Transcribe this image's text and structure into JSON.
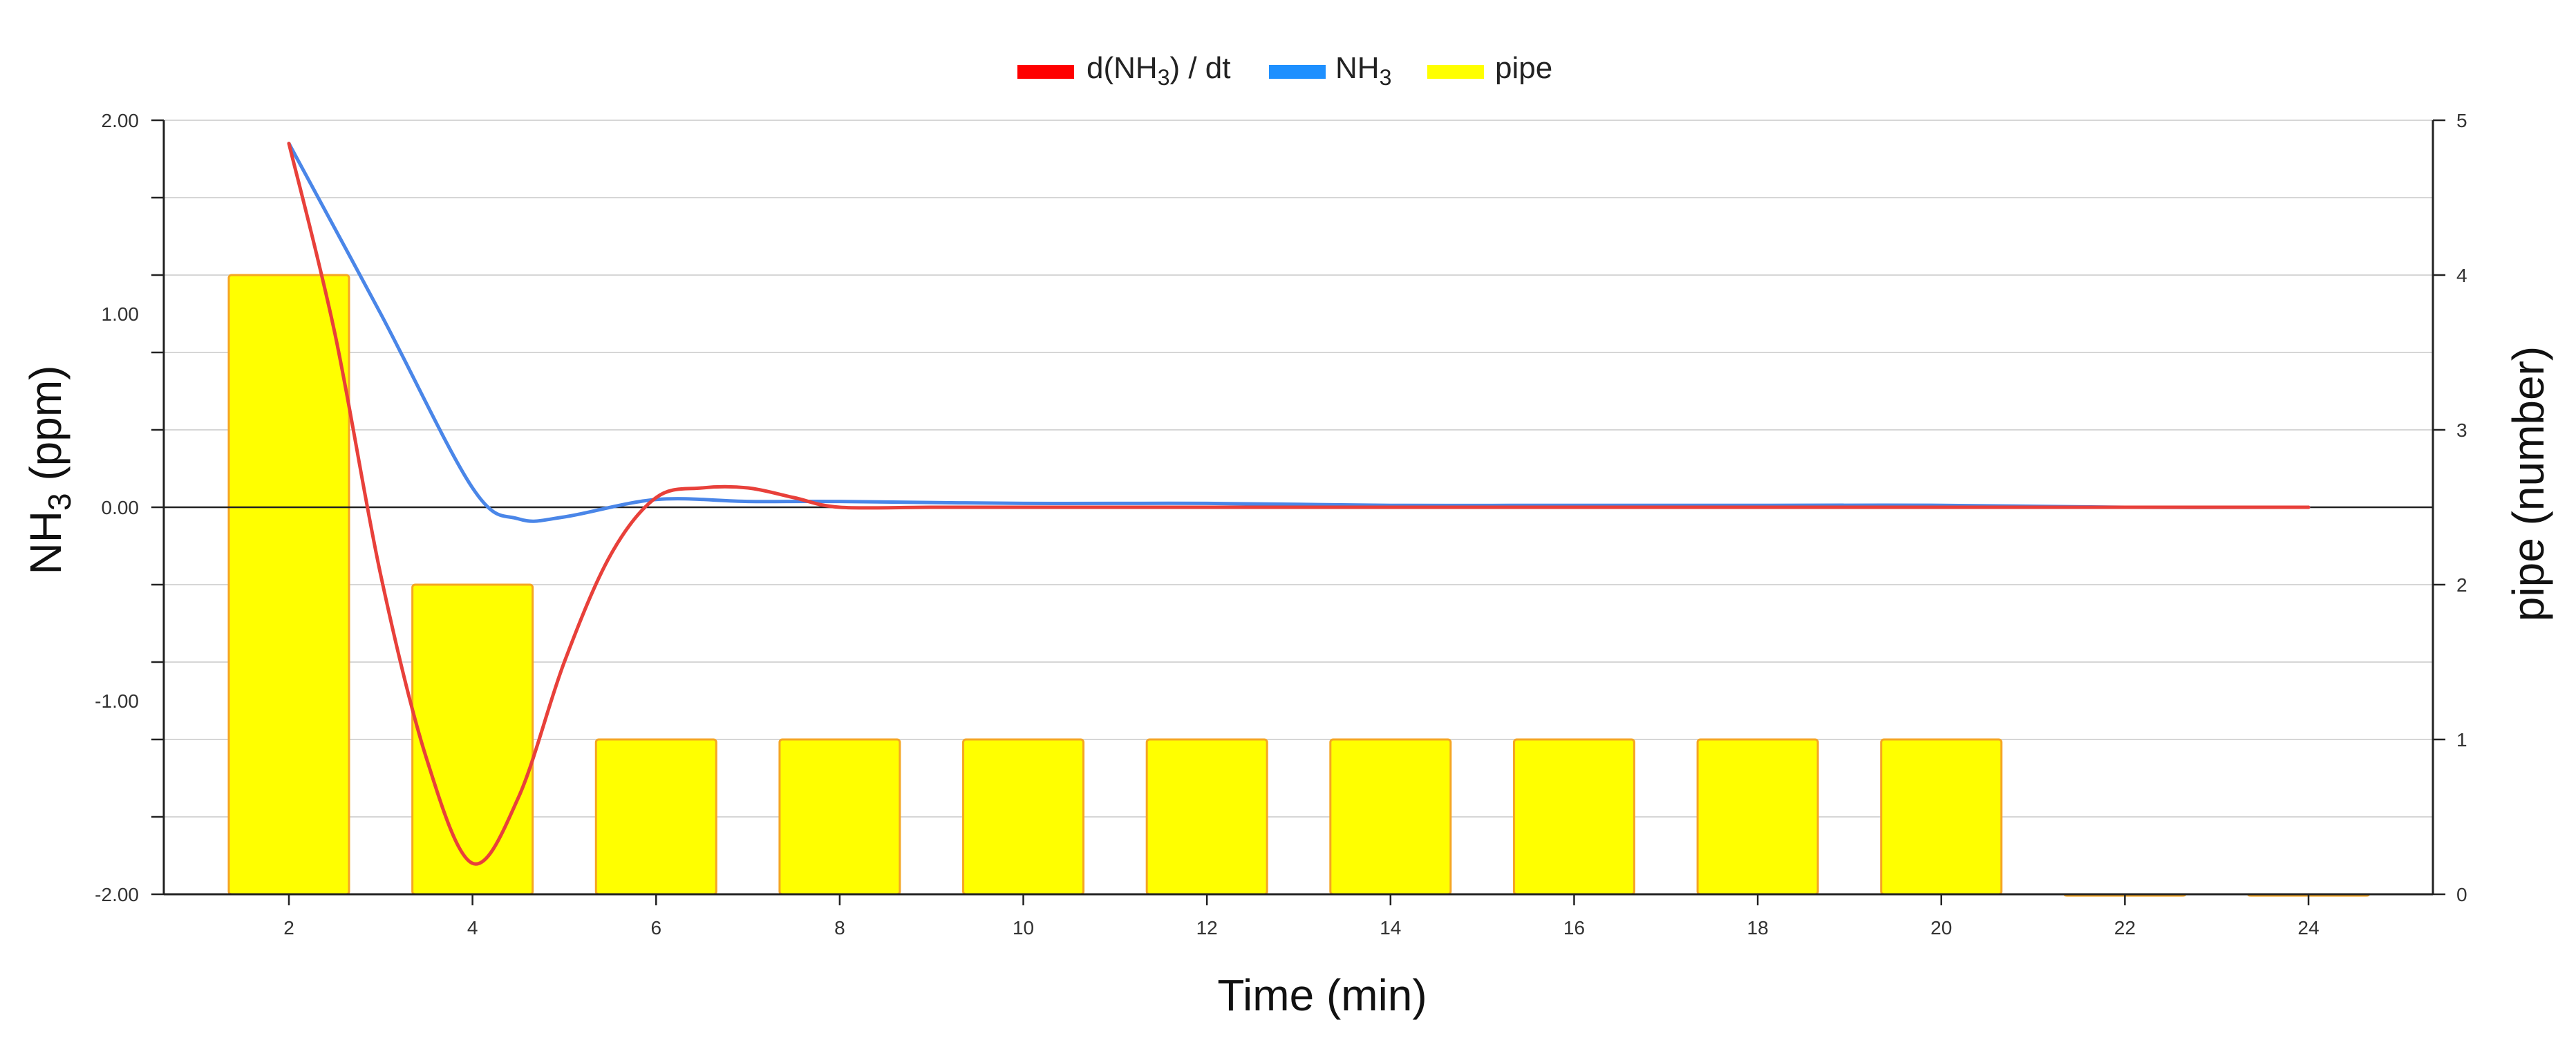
{
  "chart_data": {
    "type": "bar",
    "x_categories": [
      "2",
      "4",
      "6",
      "8",
      "10",
      "12",
      "14",
      "16",
      "18",
      "20",
      "22",
      "24"
    ],
    "x_values": [
      2,
      4,
      6,
      8,
      10,
      12,
      14,
      16,
      18,
      20,
      22,
      24
    ],
    "xlabel": "Time (min)",
    "ylabel_left": {
      "base": "NH",
      "sub": "3",
      "rest": " (ppm)"
    },
    "ylabel_right": "pipe (number)",
    "ylim_left": [
      -2,
      2
    ],
    "ylim_right": [
      0,
      5
    ],
    "left_ticks": [
      "2.00",
      "1.00",
      "0.00",
      "-1.00",
      "-2.00"
    ],
    "left_tick_values": [
      2,
      1,
      0,
      -1,
      -2
    ],
    "right_ticks": [
      "5",
      "4",
      "3",
      "2",
      "1",
      "0"
    ],
    "right_tick_values": [
      5,
      4,
      3,
      2,
      1,
      0
    ],
    "grid": true,
    "legend_position": "top-center",
    "legend": [
      {
        "key": "derivative",
        "parts": [
          "d(NH",
          "3",
          ") / dt"
        ],
        "color": "#ff0000"
      },
      {
        "key": "nh3",
        "parts": [
          "NH",
          "3",
          ""
        ],
        "color": "#1e90ff"
      },
      {
        "key": "pipe",
        "parts": [
          "pipe",
          "",
          ""
        ],
        "color": "#ffff00"
      }
    ],
    "series": [
      {
        "name": "pipe",
        "type": "bar",
        "axis": "right",
        "color": "#ffff00",
        "edge_color": "#f5a623",
        "x": [
          2,
          4,
          6,
          8,
          10,
          12,
          14,
          16,
          18,
          20,
          22,
          24
        ],
        "values": [
          4,
          2,
          1,
          1,
          1,
          1,
          1,
          1,
          1,
          1,
          0,
          0
        ]
      },
      {
        "name": "NH3",
        "type": "line",
        "axis": "left",
        "color": "#4a86e8",
        "x": [
          2,
          3,
          4,
          4.5,
          5,
          6,
          7,
          8,
          10,
          12,
          14,
          16,
          18,
          20,
          22,
          24
        ],
        "values": [
          1.88,
          1.0,
          0.1,
          -0.06,
          -0.05,
          0.04,
          0.03,
          0.03,
          0.02,
          0.02,
          0.01,
          0.01,
          0.01,
          0.01,
          0.0,
          0.0
        ]
      },
      {
        "name": "d(NH3) / dt",
        "type": "line",
        "axis": "left",
        "color": "#e8403a",
        "x": [
          2,
          2.5,
          3,
          3.5,
          4,
          4.5,
          5,
          5.5,
          6,
          6.5,
          7,
          7.5,
          8,
          9,
          10,
          12,
          14,
          16,
          18,
          20,
          22,
          24
        ],
        "values": [
          1.88,
          0.9,
          -0.35,
          -1.3,
          -1.84,
          -1.5,
          -0.8,
          -0.25,
          0.05,
          0.1,
          0.1,
          0.05,
          0.0,
          0.0,
          0.0,
          0.0,
          0.0,
          0.0,
          0.0,
          0.0,
          0.0,
          0.0
        ]
      }
    ]
  }
}
